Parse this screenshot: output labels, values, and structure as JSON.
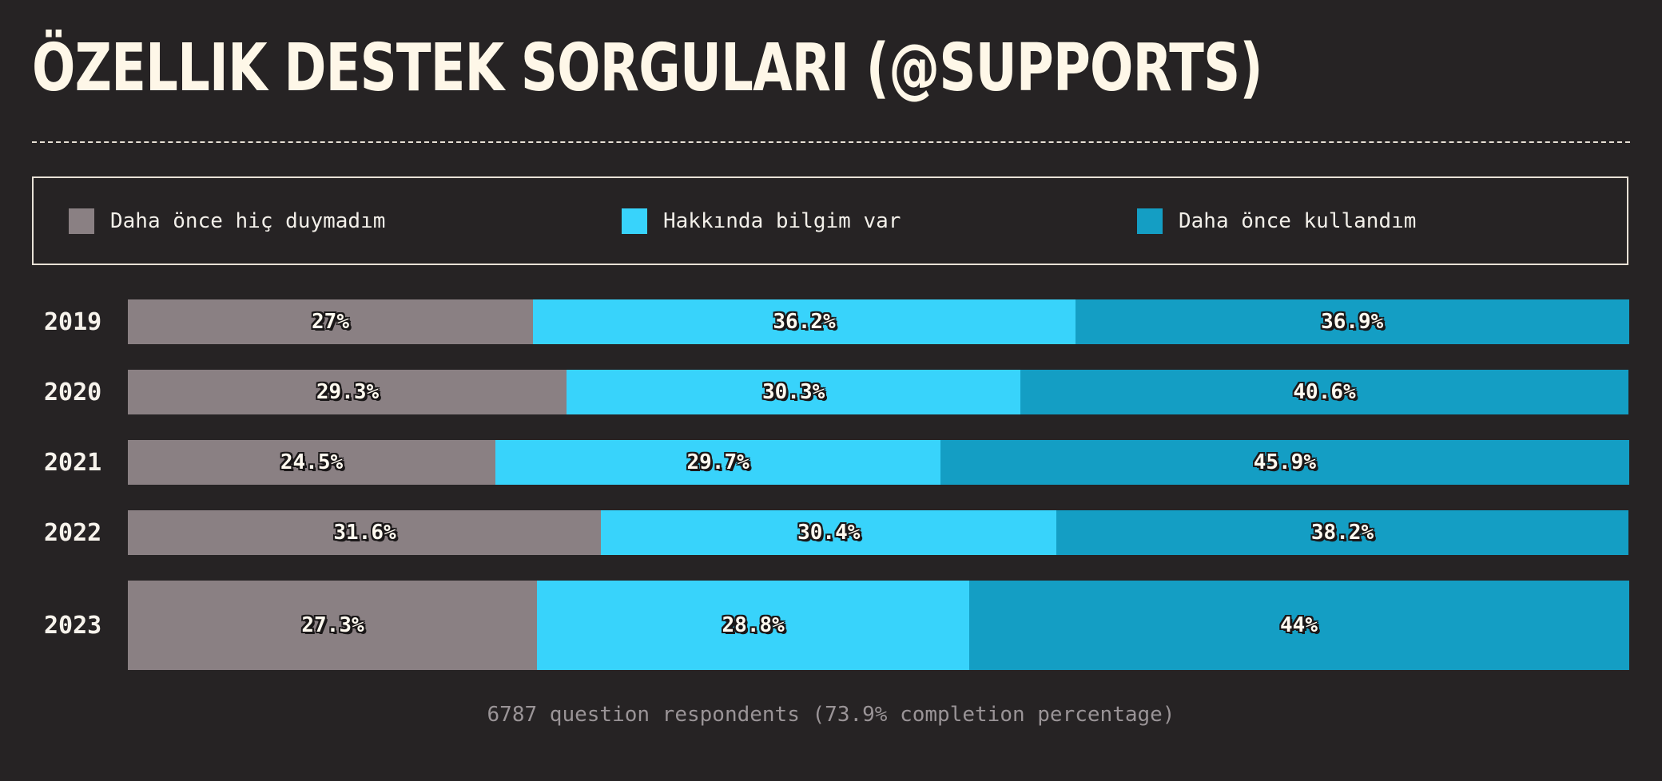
{
  "header": {
    "title": "ÖZELLIK DESTEK SORGULARI (@SUPPORTS)"
  },
  "legend": [
    {
      "label": "Daha önce hiç duymadım",
      "color": "#8a8083"
    },
    {
      "label": "Hakkında bilgim var",
      "color": "#38d3fb"
    },
    {
      "label": "Daha önce kullandım",
      "color": "#149ec4"
    }
  ],
  "chart_data": {
    "type": "bar",
    "orientation": "horizontal",
    "stacked": true,
    "categories": [
      "2019",
      "2020",
      "2021",
      "2022",
      "2023"
    ],
    "series": [
      {
        "name": "Daha önce hiç duymadım",
        "values": [
          27,
          29.3,
          24.5,
          31.6,
          27.3
        ],
        "labels": [
          "27%",
          "29.3%",
          "24.5%",
          "31.6%",
          "27.3%"
        ]
      },
      {
        "name": "Hakkında bilgim var",
        "values": [
          36.2,
          30.3,
          29.7,
          30.4,
          28.8
        ],
        "labels": [
          "36.2%",
          "30.3%",
          "29.7%",
          "30.4%",
          "28.8%"
        ]
      },
      {
        "name": "Daha önce kullandım",
        "values": [
          36.9,
          40.6,
          45.9,
          38.2,
          44
        ],
        "labels": [
          "36.9%",
          "40.6%",
          "45.9%",
          "38.2%",
          "44%"
        ]
      }
    ],
    "xlim": [
      0,
      100
    ],
    "grid": false,
    "legend_position": "top"
  },
  "footer": {
    "note": "6787 question respondents (73.9% completion percentage)"
  }
}
